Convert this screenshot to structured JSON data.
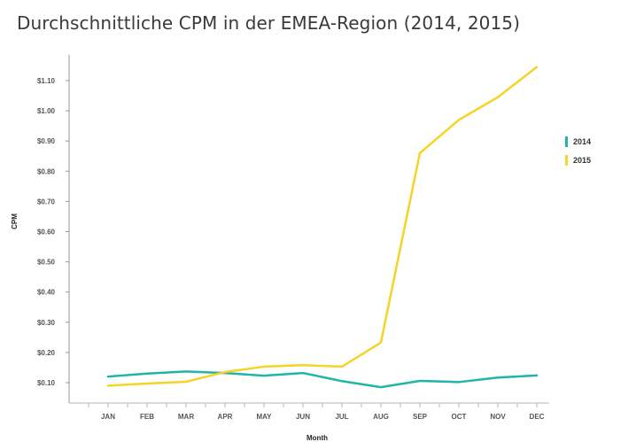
{
  "chart_data": {
    "type": "line",
    "title": "Durchschnittliche CPM in der EMEA-Region (2014, 2015)",
    "xlabel": "Month",
    "ylabel": "CPM",
    "categories": [
      "JAN",
      "FEB",
      "MAR",
      "APR",
      "MAY",
      "JUN",
      "JUL",
      "AUG",
      "SEP",
      "OCT",
      "NOV",
      "DEC"
    ],
    "yticks": [
      0.1,
      0.2,
      0.3,
      0.4,
      0.5,
      0.6,
      0.7,
      0.8,
      0.9,
      1.0,
      1.1
    ],
    "ytick_labels": [
      "$0.10",
      "$0.20",
      "$0.30",
      "$0.40",
      "$0.50",
      "$0.60",
      "$0.70",
      "$0.80",
      "$0.90",
      "$1.00",
      "$1.10"
    ],
    "ylim": [
      0.0,
      1.2
    ],
    "legend_position": "right",
    "series": [
      {
        "name": "2014",
        "color": "#1fb5a8",
        "values": [
          0.12,
          0.13,
          0.137,
          0.132,
          0.123,
          0.132,
          0.105,
          0.085,
          0.106,
          0.102,
          0.117,
          0.124
        ]
      },
      {
        "name": "2015",
        "color": "#f5d327",
        "values": [
          0.09,
          0.097,
          0.103,
          0.135,
          0.153,
          0.158,
          0.153,
          0.233,
          0.86,
          0.97,
          1.045,
          1.145
        ]
      }
    ]
  }
}
